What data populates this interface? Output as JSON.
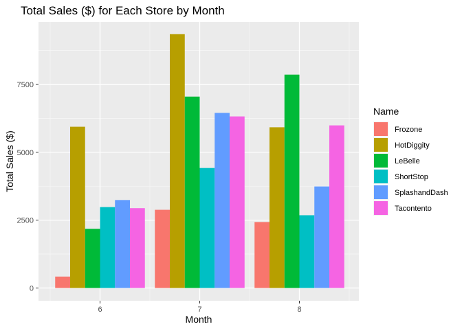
{
  "chart_data": {
    "type": "bar",
    "title": "Total Sales ($) for Each Store by Month",
    "xlabel": "Month",
    "ylabel": "Total Sales ($)",
    "categories": [
      "6",
      "7",
      "8"
    ],
    "ylim": [
      -470,
      9800
    ],
    "yticks": [
      0,
      2500,
      5000,
      7500
    ],
    "grid": true,
    "legend": {
      "title": "Name",
      "position": "right"
    },
    "series": [
      {
        "name": "Frozone",
        "color": "#F8766D",
        "values": [
          420,
          2880,
          2430
        ]
      },
      {
        "name": "HotDiggity",
        "color": "#B79F00",
        "values": [
          5940,
          9350,
          5920
        ]
      },
      {
        "name": "LeBelle",
        "color": "#00BA38",
        "values": [
          2180,
          7050,
          7860
        ]
      },
      {
        "name": "ShortStop",
        "color": "#00BFC4",
        "values": [
          2980,
          4420,
          2680
        ]
      },
      {
        "name": "SplashandDash",
        "color": "#619CFF",
        "values": [
          3240,
          6450,
          3740
        ]
      },
      {
        "name": "Tacontento",
        "color": "#F564E3",
        "values": [
          2940,
          6320,
          5990
        ]
      }
    ]
  }
}
